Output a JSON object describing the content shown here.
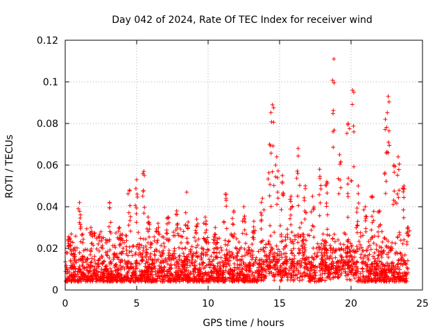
{
  "chart_data": {
    "type": "scatter",
    "title": "Day 042 of 2024, Rate Of TEC Index for receiver wind",
    "xlabel": "GPS time / hours",
    "ylabel": "ROTI / TECUs",
    "xlim": [
      0,
      25
    ],
    "ylim": [
      0,
      0.12
    ],
    "x_ticks": [
      0,
      5,
      10,
      15,
      20,
      25
    ],
    "x_tick_labels": [
      "0",
      "5",
      "10",
      "15",
      "20",
      "25"
    ],
    "y_ticks": [
      0,
      0.02,
      0.04,
      0.06,
      0.08,
      0.1,
      0.12
    ],
    "y_tick_labels": [
      "0",
      "0.02",
      "0.04",
      "0.06",
      "0.08",
      "0.1",
      "0.12"
    ],
    "grid": true,
    "marker": "+",
    "marker_color": "#ff0000",
    "data_coverage_hours": [
      0,
      24
    ],
    "series": [
      {
        "name": "ROTI",
        "x": [
          0.3,
          1.0,
          1.8,
          2.5,
          3.1,
          3.8,
          4.5,
          5.0,
          5.5,
          5.8,
          6.5,
          7.2,
          7.8,
          8.5,
          9.2,
          9.8,
          10.5,
          11.2,
          11.8,
          12.5,
          13.2,
          13.8,
          14.3,
          14.5,
          14.8,
          15.2,
          15.8,
          16.3,
          16.8,
          17.3,
          17.8,
          18.3,
          18.8,
          19.2,
          19.8,
          20.1,
          20.5,
          21.0,
          21.5,
          22.0,
          22.4,
          22.6,
          23.0,
          23.3,
          23.7,
          24.0
        ],
        "y": [
          0.025,
          0.042,
          0.03,
          0.028,
          0.042,
          0.03,
          0.048,
          0.053,
          0.057,
          0.035,
          0.032,
          0.035,
          0.038,
          0.047,
          0.034,
          0.035,
          0.03,
          0.046,
          0.038,
          0.04,
          0.033,
          0.044,
          0.07,
          0.089,
          0.064,
          0.055,
          0.045,
          0.068,
          0.05,
          0.045,
          0.058,
          0.052,
          0.111,
          0.065,
          0.08,
          0.096,
          0.05,
          0.04,
          0.045,
          0.038,
          0.082,
          0.093,
          0.06,
          0.064,
          0.05,
          0.03
        ]
      }
    ]
  }
}
